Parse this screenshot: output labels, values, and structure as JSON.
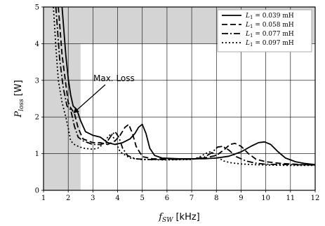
{
  "chart_data": {
    "type": "line",
    "xlabel_main": "f",
    "xlabel_sub": "SW",
    "xlabel_unit": "[kHz]",
    "ylabel_main": "P",
    "ylabel_sub": "loss",
    "ylabel_unit": "[W]",
    "xlim": [
      1,
      12
    ],
    "ylim": [
      0,
      5
    ],
    "x_ticks": [
      1,
      2,
      3,
      4,
      5,
      6,
      7,
      8,
      9,
      10,
      11,
      12
    ],
    "y_ticks": [
      0,
      1,
      2,
      3,
      4,
      5
    ],
    "grid": true,
    "legend_position": "top-right",
    "shaded_regions": [
      {
        "x": [
          1,
          2.5
        ],
        "y": [
          0,
          5
        ]
      },
      {
        "x": [
          1,
          12
        ],
        "y": [
          4,
          5
        ]
      }
    ],
    "annotation": {
      "text": "Max. Loss",
      "points_to": [
        2.2,
        2.1
      ]
    },
    "series": [
      {
        "name_prefix": "L",
        "name_sub": "1",
        "name_value": " = 0.039 mH",
        "dash": "",
        "x": [
          1.75,
          1.9,
          2.0,
          2.1,
          2.2,
          2.35,
          2.5,
          2.7,
          3.0,
          3.3,
          3.6,
          3.9,
          4.2,
          4.5,
          4.7,
          4.85,
          5.0,
          5.15,
          5.3,
          5.5,
          5.8,
          6.5,
          7.5,
          8.0,
          8.5,
          9.0,
          9.4,
          9.7,
          9.95,
          10.2,
          10.5,
          10.8,
          11.2,
          11.6,
          12.0
        ],
        "y": [
          5.0,
          3.7,
          3.05,
          2.6,
          2.3,
          2.2,
          1.9,
          1.6,
          1.5,
          1.45,
          1.3,
          1.25,
          1.3,
          1.4,
          1.55,
          1.72,
          1.8,
          1.55,
          1.15,
          0.95,
          0.88,
          0.86,
          0.86,
          0.88,
          0.93,
          1.05,
          1.2,
          1.3,
          1.32,
          1.25,
          1.05,
          0.88,
          0.78,
          0.73,
          0.7
        ]
      },
      {
        "name_prefix": "L",
        "name_sub": "1",
        "name_value": " = 0.058 mH",
        "dash": "8,4",
        "x": [
          1.6,
          1.75,
          1.9,
          2.0,
          2.1,
          2.25,
          2.4,
          2.6,
          3.0,
          3.3,
          3.6,
          3.9,
          4.1,
          4.3,
          4.45,
          4.6,
          4.75,
          5.0,
          5.4,
          6.0,
          7.0,
          7.5,
          8.0,
          8.3,
          8.55,
          8.75,
          9.0,
          9.3,
          9.6,
          10.0,
          10.5,
          11.0,
          11.5,
          12.0
        ],
        "y": [
          5.0,
          3.7,
          2.9,
          2.4,
          2.25,
          2.1,
          1.7,
          1.4,
          1.3,
          1.3,
          1.25,
          1.35,
          1.5,
          1.72,
          1.8,
          1.55,
          1.2,
          0.92,
          0.86,
          0.85,
          0.85,
          0.88,
          0.95,
          1.1,
          1.25,
          1.28,
          1.2,
          1.0,
          0.85,
          0.78,
          0.74,
          0.72,
          0.7,
          0.69
        ]
      },
      {
        "name_prefix": "L",
        "name_sub": "1",
        "name_value": " = 0.077 mH",
        "dash": "9,3,2,3",
        "x": [
          1.5,
          1.65,
          1.8,
          1.95,
          2.1,
          2.25,
          2.4,
          2.6,
          3.0,
          3.3,
          3.55,
          3.75,
          3.9,
          4.05,
          4.2,
          4.4,
          4.7,
          5.2,
          6.0,
          7.0,
          7.5,
          7.8,
          8.05,
          8.25,
          8.5,
          8.8,
          9.2,
          9.6,
          10.0,
          11.0,
          12.0
        ],
        "y": [
          5.0,
          3.6,
          2.8,
          2.3,
          2.2,
          1.75,
          1.45,
          1.35,
          1.25,
          1.25,
          1.3,
          1.5,
          1.6,
          1.45,
          1.15,
          0.95,
          0.86,
          0.84,
          0.84,
          0.85,
          0.9,
          1.02,
          1.18,
          1.2,
          1.1,
          0.92,
          0.8,
          0.74,
          0.71,
          0.7,
          0.69
        ]
      },
      {
        "name_prefix": "L",
        "name_sub": "1",
        "name_value": " = 0.097 mH",
        "dash": "2,3",
        "x": [
          1.4,
          1.5,
          1.6,
          1.75,
          1.9,
          2.0,
          2.1,
          2.25,
          2.4,
          2.6,
          3.0,
          3.2,
          3.4,
          3.6,
          3.75,
          3.9,
          4.1,
          4.5,
          5.0,
          6.0,
          7.0,
          7.3,
          7.55,
          7.75,
          7.9,
          8.05,
          8.3,
          8.6,
          9.0,
          9.5,
          10.0,
          11.0,
          12.0
        ],
        "y": [
          5.0,
          3.9,
          3.0,
          2.4,
          2.0,
          1.7,
          1.35,
          1.25,
          1.2,
          1.15,
          1.12,
          1.15,
          1.25,
          1.45,
          1.55,
          1.35,
          1.05,
          0.88,
          0.84,
          0.83,
          0.84,
          0.9,
          1.0,
          1.05,
          1.0,
          0.9,
          0.8,
          0.75,
          0.72,
          0.7,
          0.69,
          0.68,
          0.68
        ]
      }
    ]
  }
}
